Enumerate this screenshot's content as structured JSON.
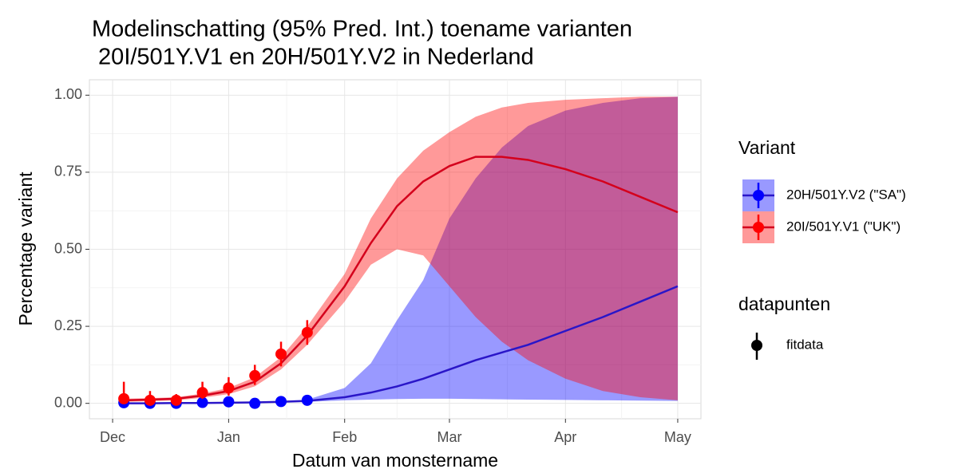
{
  "chart_data": {
    "type": "line",
    "title": [
      "Modelinschatting (95% Pred. Int.) toename varianten",
      " 20I/501Y.V1 en 20H/501Y.V2 in Nederland"
    ],
    "x_label": "Datum van monstername",
    "y_label": "Percentage variant",
    "xlim": [
      -6.2,
      157.2
    ],
    "xticks": [
      {
        "value": 0,
        "label": "Dec"
      },
      {
        "value": 31,
        "label": "Jan"
      },
      {
        "value": 62,
        "label": "Feb"
      },
      {
        "value": 90,
        "label": "Mar"
      },
      {
        "value": 121,
        "label": "Apr"
      },
      {
        "value": 151,
        "label": "May"
      }
    ],
    "ylim": [
      -0.05,
      1.05
    ],
    "yticks": [
      {
        "value": 0,
        "label": "0.00"
      },
      {
        "value": 0.25,
        "label": "0.25"
      },
      {
        "value": 0.5,
        "label": "0.50"
      },
      {
        "value": 0.75,
        "label": "0.75"
      },
      {
        "value": 1,
        "label": "1.00"
      }
    ],
    "grid": true,
    "legend_title": "Variant",
    "x": [
      3,
      10,
      17,
      24,
      31,
      38,
      45,
      52,
      62,
      69,
      76,
      83,
      90,
      97,
      104,
      111,
      121,
      131,
      141,
      151
    ],
    "series": [
      {
        "name": "20H/501Y.V2 (\"SA\")",
        "color": "#0000ff",
        "line_color": "#2a16c8",
        "values": [
          0,
          0,
          0.001,
          0.001,
          0.002,
          0.003,
          0.005,
          0.008,
          0.02,
          0.035,
          0.055,
          0.08,
          0.11,
          0.14,
          0.165,
          0.19,
          0.235,
          0.28,
          0.33,
          0.38
        ],
        "lower": [
          0,
          0,
          0,
          0,
          0.001,
          0.002,
          0.003,
          0.005,
          0.01,
          0.012,
          0.014,
          0.015,
          0.015,
          0.014,
          0.013,
          0.012,
          0.011,
          0.01,
          0.009,
          0.008
        ],
        "upper": [
          0.002,
          0.002,
          0.003,
          0.003,
          0.004,
          0.005,
          0.008,
          0.012,
          0.05,
          0.13,
          0.27,
          0.4,
          0.6,
          0.73,
          0.83,
          0.9,
          0.95,
          0.975,
          0.99,
          0.995
        ]
      },
      {
        "name": "20I/501Y.V1 (\"UK\")",
        "color": "#ff0000",
        "line_color": "#d4001c",
        "values": [
          0.01,
          0.012,
          0.015,
          0.025,
          0.04,
          0.07,
          0.13,
          0.22,
          0.38,
          0.52,
          0.64,
          0.72,
          0.77,
          0.8,
          0.8,
          0.79,
          0.76,
          0.72,
          0.67,
          0.62
        ],
        "lower": [
          0.005,
          0.007,
          0.01,
          0.018,
          0.03,
          0.055,
          0.11,
          0.19,
          0.33,
          0.45,
          0.5,
          0.48,
          0.38,
          0.28,
          0.2,
          0.14,
          0.08,
          0.04,
          0.02,
          0.01
        ],
        "upper": [
          0.015,
          0.017,
          0.02,
          0.032,
          0.05,
          0.085,
          0.15,
          0.25,
          0.42,
          0.6,
          0.73,
          0.82,
          0.88,
          0.93,
          0.96,
          0.975,
          0.985,
          0.99,
          0.995,
          0.995
        ]
      }
    ],
    "points": {
      "legend_title": "datapunten",
      "label": "fitdata",
      "x": [
        3,
        10,
        17,
        24,
        31,
        38,
        45,
        52
      ],
      "series": [
        {
          "values": [
            0.002,
            0,
            0,
            0.003,
            0.005,
            0,
            0.006,
            0.01
          ],
          "lower": [
            0,
            0,
            0,
            0,
            0,
            0,
            0,
            0
          ],
          "upper": [
            0.03,
            0.01,
            0.01,
            0.012,
            0.015,
            0.01,
            0.015,
            0.02
          ]
        },
        {
          "values": [
            0.015,
            0.01,
            0.01,
            0.035,
            0.05,
            0.09,
            0.16,
            0.23
          ],
          "lower": [
            0,
            0,
            0,
            0.015,
            0.025,
            0.06,
            0.12,
            0.19
          ],
          "upper": [
            0.07,
            0.04,
            0.03,
            0.07,
            0.085,
            0.125,
            0.2,
            0.27
          ]
        }
      ]
    }
  }
}
